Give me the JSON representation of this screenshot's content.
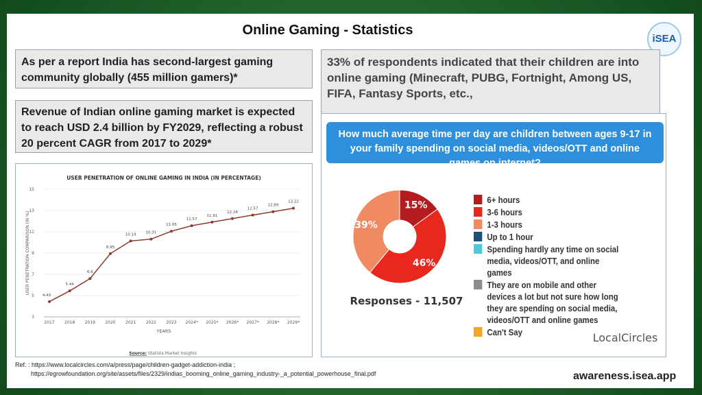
{
  "title": "Online Gaming - Statistics",
  "logo": "iSEA",
  "notes": [
    "As per a report India has second-largest gaming community globally (455 million gamers)*",
    "Revenue of Indian online gaming market is expected to reach USD 2.4 billion by FY2029, reflecting a robust 20 percent CAGR from 2017 to 2029*",
    "33% of respondents indicated that their children are into online gaming (Minecraft, PUBG, Fortnight, Among US, FIFA, Fantasy Sports, etc.,"
  ],
  "chart_data": [
    {
      "type": "line",
      "title": "USER PENETRATION OF ONLINE GAMING IN INDIA (IN PERCENTAGE)",
      "y_label": "USER PENETRATION COMPARISON (IN %)",
      "x_label": "YEARS",
      "categories": [
        "2017",
        "2018",
        "2019",
        "2020",
        "2021",
        "2022",
        "2023",
        "2024*",
        "2025*",
        "2026*",
        "2027*",
        "2028*",
        "2029*"
      ],
      "values": [
        4.43,
        5.44,
        6.6,
        8.95,
        10.14,
        10.31,
        11.05,
        11.57,
        11.91,
        12.24,
        12.57,
        12.89,
        13.22
      ],
      "color": "#8b3a2f",
      "ylim": [
        3,
        15
      ],
      "yticks": [
        3,
        5,
        7,
        9,
        11,
        13,
        15
      ],
      "grid": true,
      "source_label": "Source:",
      "source": "Statista Market Insights"
    },
    {
      "type": "pie",
      "title": "How much average time per day are children between ages 9-17 in your family spending on social media, videos/OTT and online games on internet?",
      "categories": [
        "6+ hours",
        "3-6 hours",
        "1-3 hours",
        "Up to 1 hour",
        "Spending hardly any time on social media, videos/OTT, and online games",
        "They are on mobile and other devices a lot but not sure how long they are spending on social media, videos/OTT and online games",
        "Can't Say"
      ],
      "values": [
        15,
        46,
        39,
        0,
        0,
        0,
        0
      ],
      "value_labels": [
        "15%",
        "46%",
        "39%",
        null,
        null,
        null,
        null
      ],
      "colors": [
        "#b51c1f",
        "#e8271f",
        "#f08a62",
        "#1f4e79",
        "#4fc9d6",
        "#8c8c8c",
        "#f5a623"
      ],
      "responses": "Responses - 11,507",
      "brand": "LocalCircles"
    }
  ],
  "reference": {
    "label": "Ref. : https://www.localcircles.com/a/press/page/children-gadget-addiction-india  ;",
    "link": "https://egrowfoundation.org/site/assets/files/2329/indias_booming_online_gaming_industry-_a_potential_powerhouse_final.pdf"
  },
  "footer": "awareness.isea.app"
}
